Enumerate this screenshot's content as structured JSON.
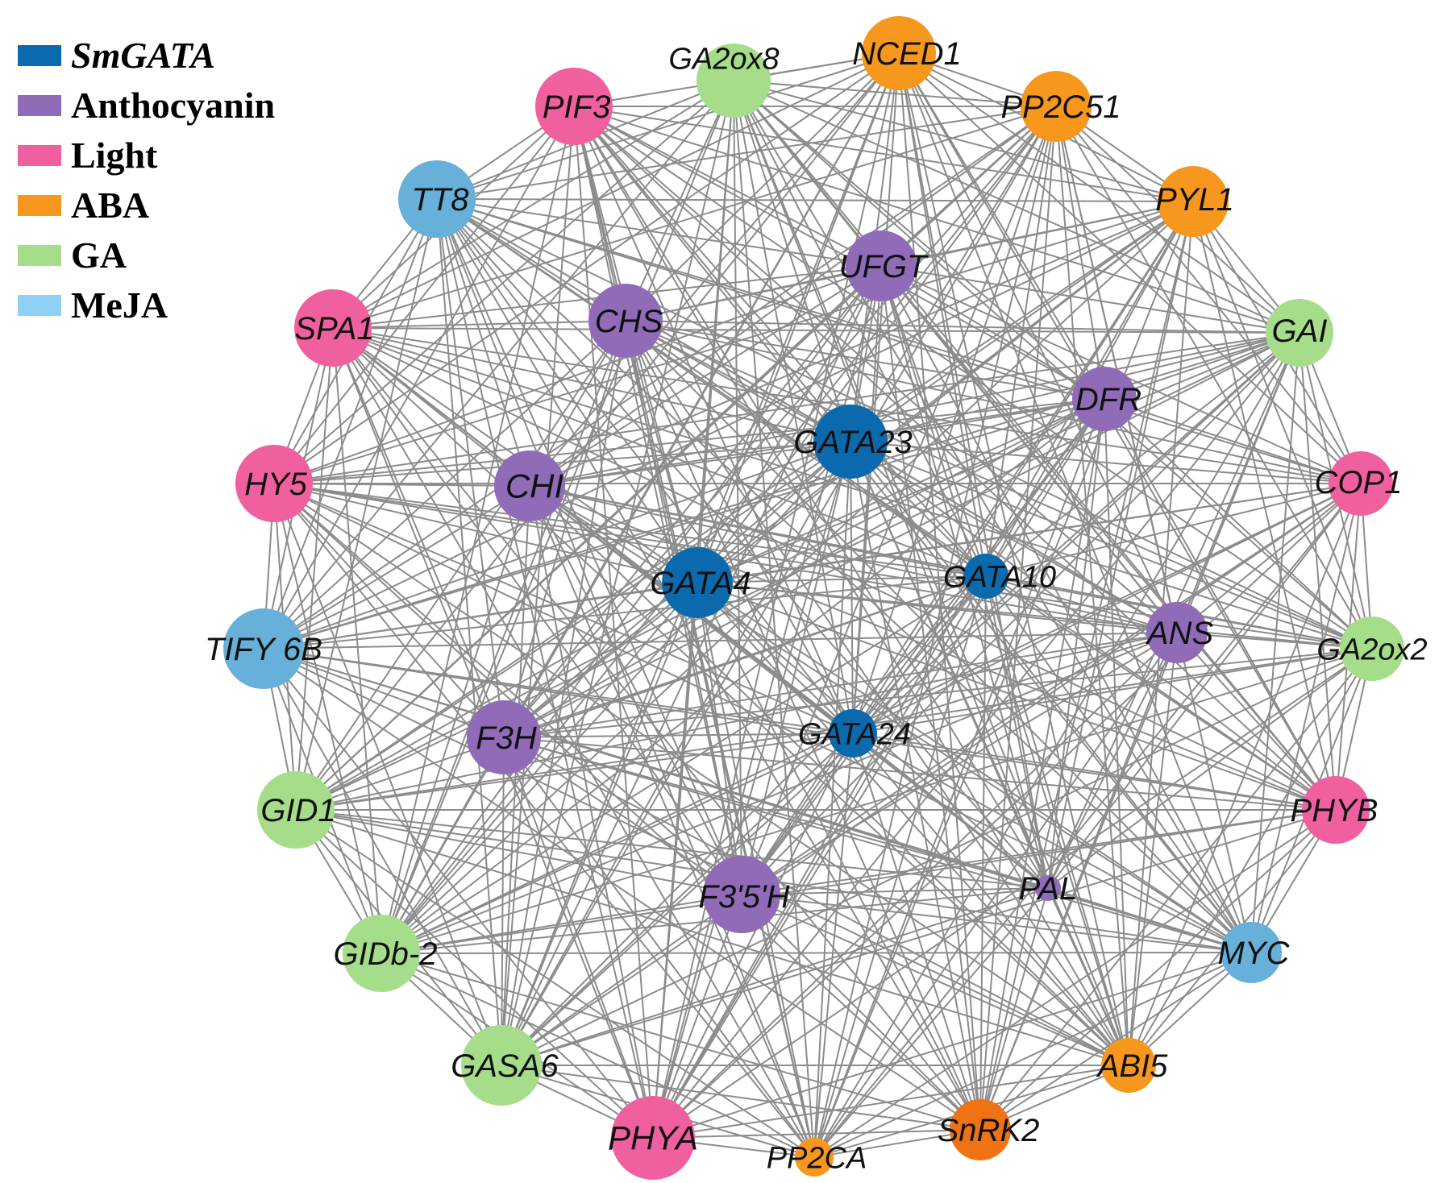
{
  "legend": [
    {
      "key": "smgata",
      "label": "SmGATA",
      "color": "#0a6aad",
      "italic": true
    },
    {
      "key": "anthocyanin",
      "label": "Anthocyanin",
      "color": "#8f6bb8",
      "italic": false
    },
    {
      "key": "light",
      "label": "Light",
      "color": "#f0609e",
      "italic": false
    },
    {
      "key": "aba",
      "label": "ABA",
      "color": "#f7971d",
      "italic": false
    },
    {
      "key": "ga",
      "label": "GA",
      "color": "#a6dd8a",
      "italic": false
    },
    {
      "key": "meja",
      "label": "MeJA",
      "color": "#8fd1f5",
      "italic": false
    }
  ],
  "nodes": [
    {
      "id": "GA2ox8",
      "label": "GA2ox8",
      "group": "ga",
      "color": "#a6dd8a"
    },
    {
      "id": "NCED1",
      "label": "NCED1",
      "group": "aba",
      "color": "#f7971d"
    },
    {
      "id": "PP2C51",
      "label": "PP2C51",
      "group": "aba",
      "color": "#f7971d"
    },
    {
      "id": "PYL1",
      "label": "PYL1",
      "group": "aba",
      "color": "#f7971d"
    },
    {
      "id": "GAI",
      "label": "GAI",
      "group": "ga",
      "color": "#a6dd8a"
    },
    {
      "id": "COP1",
      "label": "COP1",
      "group": "light",
      "color": "#f0609e"
    },
    {
      "id": "GA2ox2",
      "label": "GA2ox2",
      "group": "ga",
      "color": "#a6dd8a"
    },
    {
      "id": "PHYB",
      "label": "PHYB",
      "group": "light",
      "color": "#f0609e"
    },
    {
      "id": "MYC",
      "label": "MYC",
      "group": "meja",
      "color": "#66b0d9"
    },
    {
      "id": "ABI5",
      "label": "ABI5",
      "group": "aba",
      "color": "#f7971d"
    },
    {
      "id": "SnRK2",
      "label": "SnRK2",
      "group": "aba",
      "color": "#ef7314"
    },
    {
      "id": "PP2CA",
      "label": "PP2CA",
      "group": "aba",
      "color": "#f7971d"
    },
    {
      "id": "PHYA",
      "label": "PHYA",
      "group": "light",
      "color": "#f0609e"
    },
    {
      "id": "GASA6",
      "label": "GASA6",
      "group": "ga",
      "color": "#a6dd8a"
    },
    {
      "id": "GIDb-2",
      "label": "GIDb-2",
      "group": "ga",
      "color": "#a6dd8a"
    },
    {
      "id": "GID1",
      "label": "GID1",
      "group": "ga",
      "color": "#a6dd8a"
    },
    {
      "id": "TIFY 6B",
      "label": "TIFY 6B",
      "group": "meja",
      "color": "#66b0d9"
    },
    {
      "id": "HY5",
      "label": "HY5",
      "group": "light",
      "color": "#f0609e"
    },
    {
      "id": "SPA1",
      "label": "SPA1",
      "group": "light",
      "color": "#f0609e"
    },
    {
      "id": "TT8",
      "label": "TT8",
      "group": "meja",
      "color": "#66b0d9"
    },
    {
      "id": "PIF3",
      "label": "PIF3",
      "group": "light",
      "color": "#f0609e"
    },
    {
      "id": "UFGT",
      "label": "UFGT",
      "group": "anthocyanin",
      "color": "#8f6bb8"
    },
    {
      "id": "CHS",
      "label": "CHS",
      "group": "anthocyanin",
      "color": "#8f6bb8"
    },
    {
      "id": "DFR",
      "label": "DFR",
      "group": "anthocyanin",
      "color": "#8f6bb8"
    },
    {
      "id": "GATA23",
      "label": "GATA23",
      "group": "smgata",
      "color": "#0a6aad"
    },
    {
      "id": "CHI",
      "label": "CHI",
      "group": "anthocyanin",
      "color": "#8f6bb8"
    },
    {
      "id": "GATA4",
      "label": "GATA4",
      "group": "smgata",
      "color": "#0a6aad"
    },
    {
      "id": "GATA10",
      "label": "GATA10",
      "group": "smgata",
      "color": "#0a6aad"
    },
    {
      "id": "ANS",
      "label": "ANS",
      "group": "anthocyanin",
      "color": "#8f6bb8"
    },
    {
      "id": "GATA24",
      "label": "GATA24",
      "group": "smgata",
      "color": "#0a6aad"
    },
    {
      "id": "F3H",
      "label": "F3H",
      "group": "anthocyanin",
      "color": "#8f6bb8"
    },
    {
      "id": "F3'5'H",
      "label": "F3'5'H",
      "group": "anthocyanin",
      "color": "#8f6bb8"
    },
    {
      "id": "PAL",
      "label": "PAL",
      "group": "anthocyanin",
      "color": "#8f6bb8"
    }
  ],
  "edge_color": "#8c8c8c"
}
